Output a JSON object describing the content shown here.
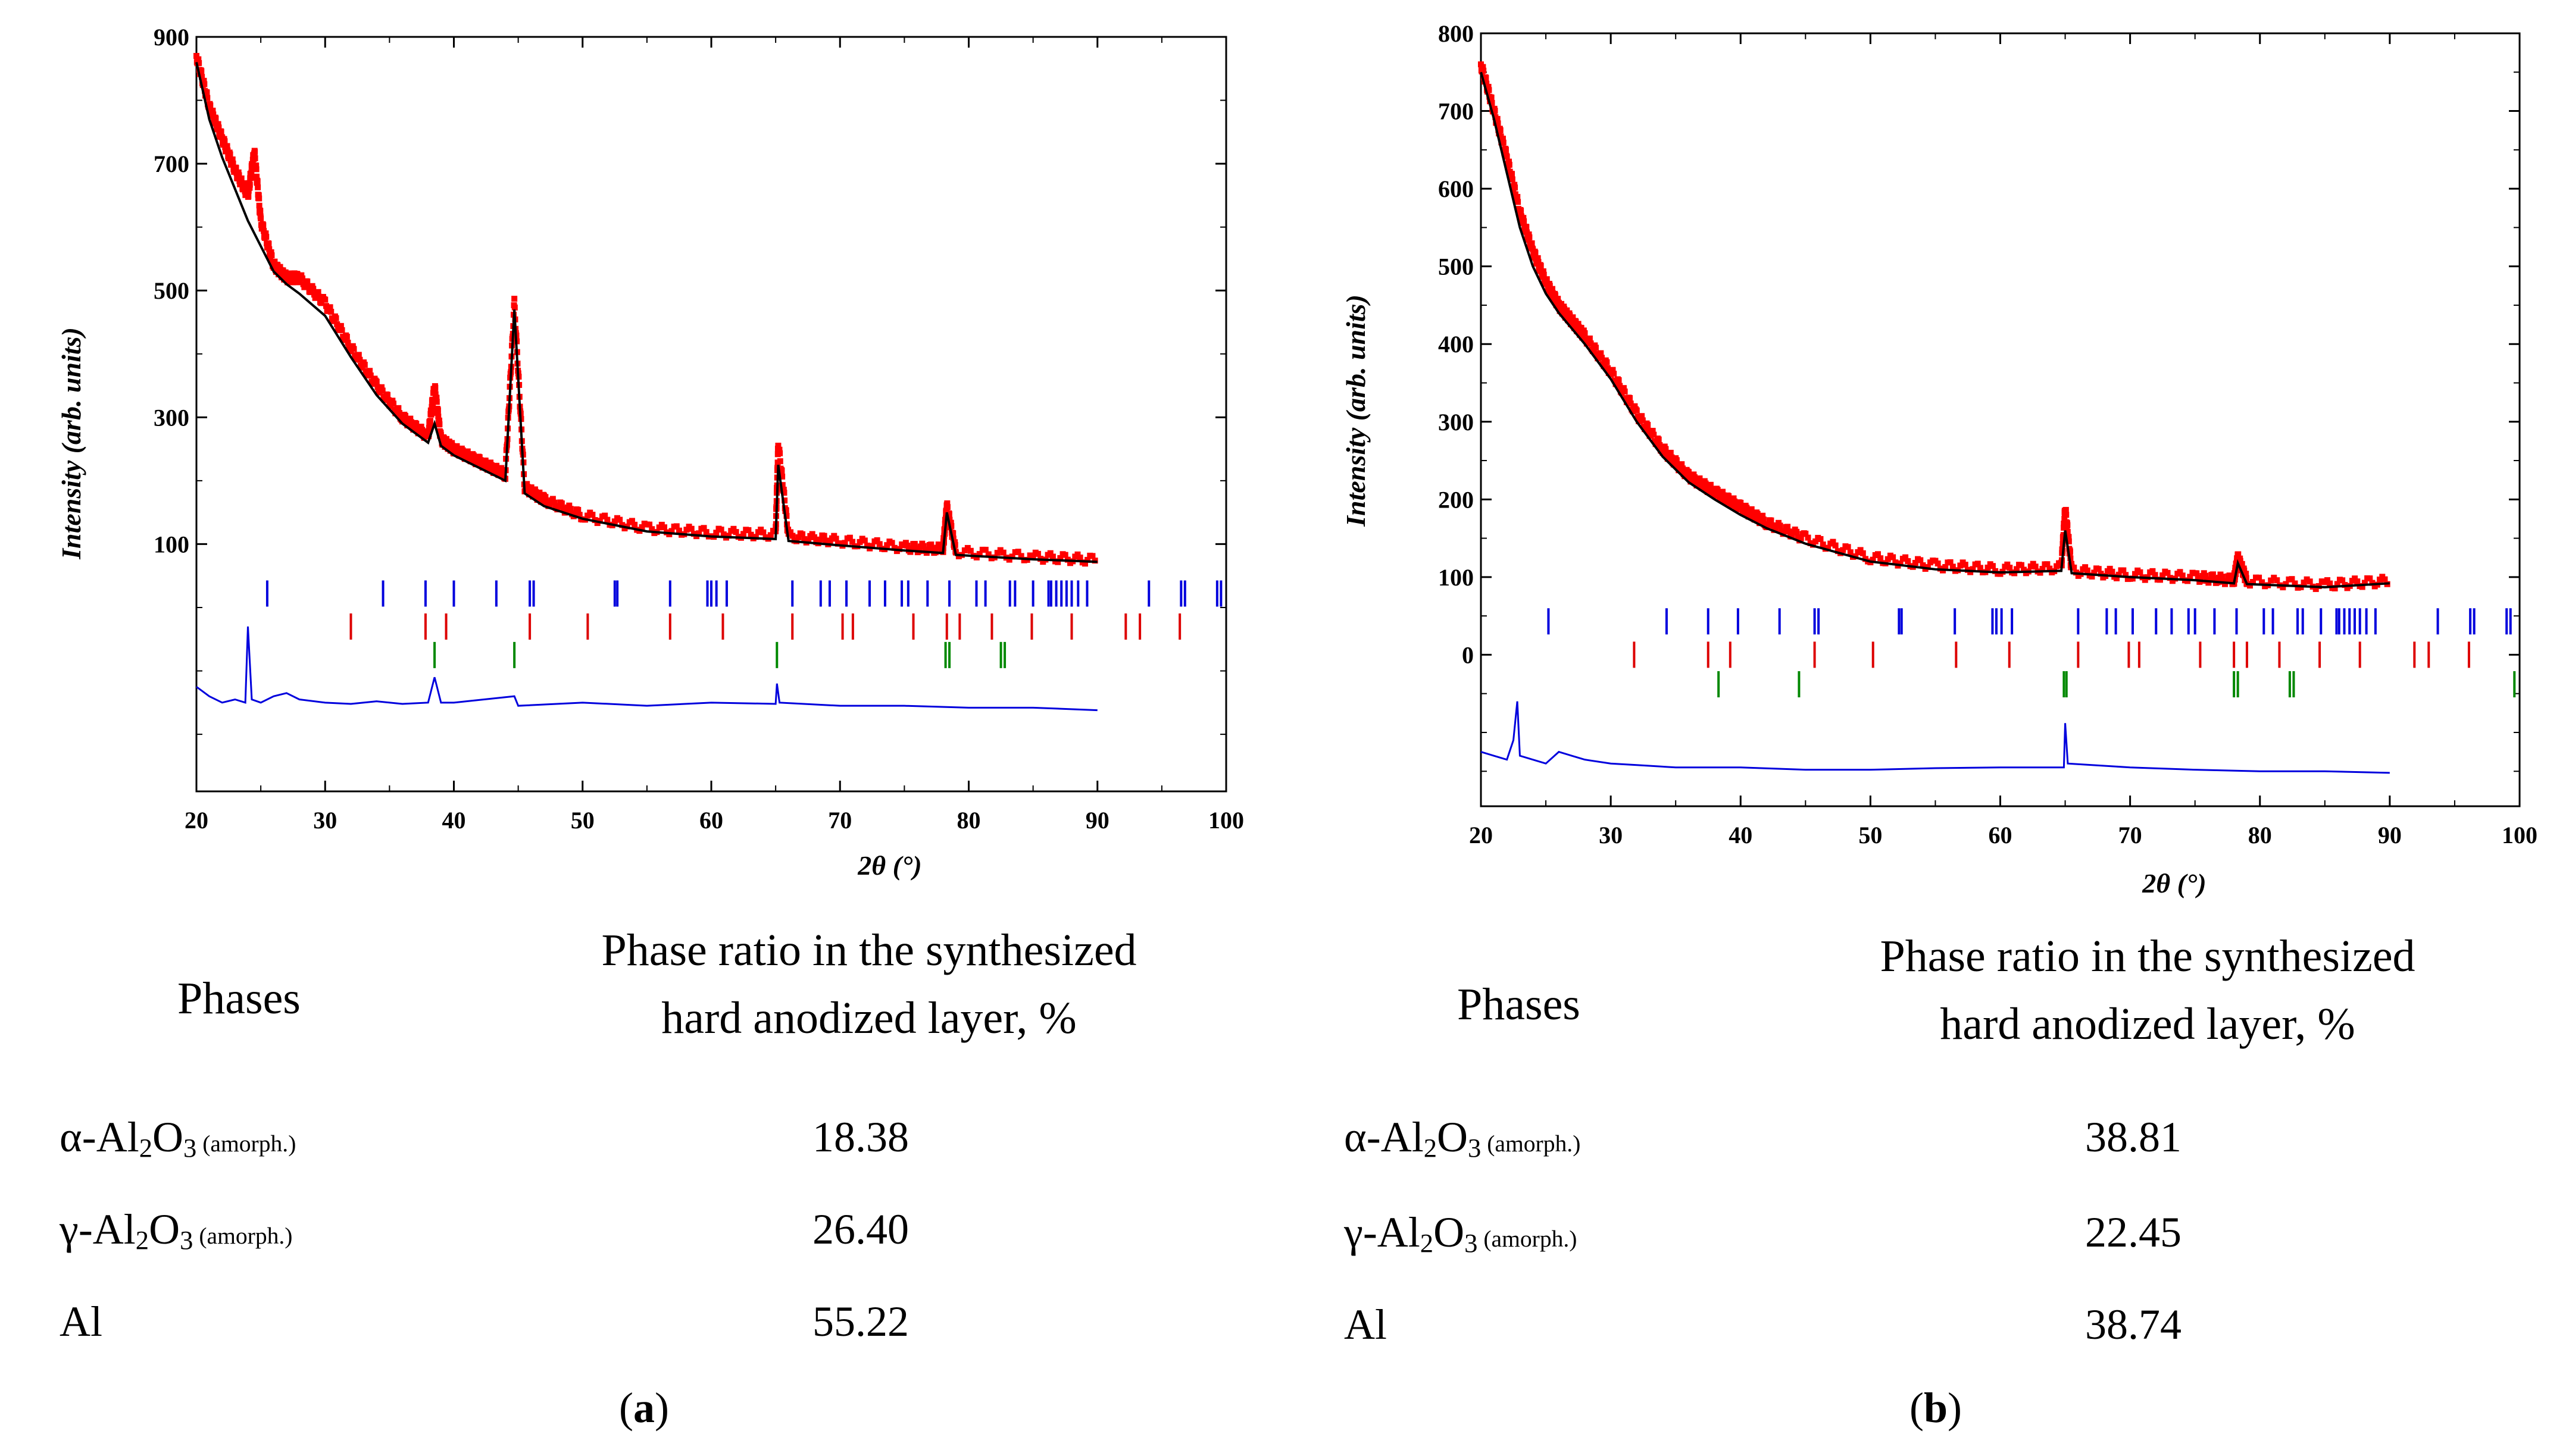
{
  "chart_data": [
    {
      "type": "line",
      "panel_label": "a",
      "xlabel": "2θ (°)",
      "ylabel": "Intensity (arb. units)",
      "xlim": [
        20,
        100
      ],
      "ylim": [
        -290,
        900
      ],
      "x_ticks": [
        20,
        30,
        40,
        50,
        60,
        70,
        80,
        90,
        100
      ],
      "y_ticks": [
        900,
        700,
        500,
        300,
        100
      ],
      "series": [
        {
          "name": "Observed",
          "color": "#ff0000",
          "style": "points",
          "x": [
            20,
            21,
            22,
            23,
            24,
            24.5,
            25,
            26,
            27,
            28,
            30,
            32,
            34,
            36,
            38,
            38.5,
            39,
            40,
            42,
            44,
            44.7,
            45.5,
            47,
            50,
            55,
            60,
            65,
            65.2,
            66,
            70,
            75,
            78,
            78.3,
            79,
            85,
            90
          ],
          "y": [
            870,
            790,
            740,
            690,
            650,
            720,
            610,
            540,
            520,
            520,
            480,
            410,
            350,
            300,
            270,
            350,
            265,
            250,
            230,
            210,
            480,
            190,
            170,
            145,
            125,
            118,
            115,
            260,
            112,
            105,
            95,
            92,
            160,
            88,
            80,
            75
          ]
        },
        {
          "name": "Calculated",
          "color": "#000000",
          "style": "line",
          "x": [
            20,
            21,
            22,
            23,
            24,
            25,
            26,
            27,
            28,
            30,
            32,
            34,
            36,
            38,
            38.5,
            39,
            40,
            42,
            44,
            44.7,
            45.5,
            47,
            50,
            55,
            60,
            65,
            65.2,
            66,
            70,
            75,
            78,
            78.3,
            79,
            85,
            90
          ],
          "y": [
            860,
            770,
            710,
            660,
            610,
            570,
            530,
            510,
            495,
            460,
            395,
            335,
            290,
            260,
            290,
            255,
            240,
            220,
            200,
            470,
            180,
            160,
            140,
            120,
            112,
            108,
            225,
            105,
            98,
            90,
            86,
            150,
            83,
            76,
            72
          ]
        },
        {
          "name": "Difference",
          "color": "#0000dd",
          "style": "line",
          "x": [
            20,
            21,
            22,
            23,
            23.8,
            24,
            24.3,
            25,
            26,
            27,
            28,
            30,
            32,
            34,
            36,
            38,
            38.5,
            39,
            40,
            44.7,
            45,
            50,
            55,
            60,
            65,
            65.1,
            65.3,
            70,
            75,
            80,
            85,
            90
          ],
          "y": [
            -125,
            -140,
            -150,
            -145,
            -150,
            -30,
            -145,
            -150,
            -140,
            -135,
            -145,
            -150,
            -152,
            -148,
            -152,
            -150,
            -110,
            -150,
            -150,
            -140,
            -155,
            -150,
            -155,
            -150,
            -152,
            -120,
            -150,
            -155,
            -155,
            -158,
            -158,
            -162
          ]
        }
      ],
      "bragg_rows": [
        {
          "name": "Phase 1",
          "color": "#0000dd",
          "y": 22,
          "positions": [
            25.5,
            34.5,
            37.8,
            40,
            43.3,
            45.9,
            46.2,
            52.5,
            52.7,
            56.8,
            59.7,
            60,
            60.4,
            61.2,
            66.3,
            68.5,
            69.2,
            70.5,
            72.3,
            73.5,
            74.8,
            75.3,
            76.8,
            78.5,
            80.6,
            81.3,
            83.2,
            83.6,
            85,
            86.2,
            86.4,
            86.8,
            87.2,
            87.6,
            88,
            88.5,
            89.2,
            94,
            96.5,
            96.8,
            99.3,
            99.6
          ]
        },
        {
          "name": "Phase 2",
          "color": "#dd0000",
          "y": -30,
          "positions": [
            32,
            37.8,
            39.4,
            45.9,
            50.4,
            56.8,
            60.9,
            66.3,
            70.2,
            71,
            75.7,
            78.3,
            79.3,
            81.8,
            84.9,
            88,
            92.2,
            93.3,
            96.4
          ]
        },
        {
          "name": "Phase 3",
          "color": "#008800",
          "y": -75,
          "positions": [
            38.5,
            44.7,
            65.1,
            78.2,
            78.5,
            82.5,
            82.8
          ]
        }
      ],
      "table": {
        "col_phases": "Phases",
        "col_ratio_line1": "Phase ratio in the synthesized",
        "col_ratio_line2": "hard anodized layer, %",
        "rows": [
          {
            "prefix": "α-Al",
            "sub1": "2",
            "mid": "O",
            "sub2": "3",
            "note": " (amorph.)",
            "value": "18.38"
          },
          {
            "prefix": "γ-Al",
            "sub1": "2",
            "mid": "O",
            "sub2": "3",
            "note": " (amorph.)",
            "value": "26.40"
          },
          {
            "prefix": "Al",
            "sub1": "",
            "mid": "",
            "sub2": "",
            "note": "",
            "value": "55.22"
          }
        ]
      }
    },
    {
      "type": "line",
      "panel_label": "b",
      "xlabel": "2θ (°)",
      "ylabel": "Intensity (arb. units)",
      "xlim": [
        20,
        100
      ],
      "ylim": [
        -195,
        800
      ],
      "x_ticks": [
        20,
        30,
        40,
        50,
        60,
        70,
        80,
        90,
        100
      ],
      "y_ticks": [
        800,
        700,
        600,
        500,
        400,
        300,
        200,
        100,
        0
      ],
      "series": [
        {
          "name": "Observed",
          "color": "#ff0000",
          "style": "points",
          "x": [
            20,
            21,
            22,
            23,
            24,
            25,
            26,
            27,
            28,
            30,
            32,
            34,
            36,
            38,
            40,
            42,
            45,
            50,
            55,
            60,
            64.7,
            65,
            65.5,
            70,
            75,
            78,
            78.3,
            79,
            85,
            90
          ],
          "y": [
            760,
            700,
            640,
            570,
            520,
            480,
            450,
            430,
            410,
            365,
            310,
            265,
            230,
            210,
            190,
            170,
            150,
            125,
            115,
            110,
            112,
            190,
            108,
            103,
            100,
            96,
            125,
            95,
            90,
            95
          ]
        },
        {
          "name": "Calculated",
          "color": "#000000",
          "style": "line",
          "x": [
            20,
            21,
            22,
            23,
            24,
            25,
            26,
            27,
            28,
            30,
            32,
            34,
            36,
            38,
            40,
            42,
            45,
            50,
            55,
            60,
            64.7,
            65,
            65.5,
            70,
            75,
            78,
            78.3,
            79,
            85,
            90
          ],
          "y": [
            750,
            690,
            620,
            550,
            500,
            465,
            440,
            420,
            400,
            355,
            300,
            255,
            222,
            200,
            180,
            163,
            143,
            120,
            110,
            106,
            108,
            160,
            105,
            100,
            96,
            92,
            118,
            91,
            87,
            92
          ]
        },
        {
          "name": "Difference",
          "color": "#0000dd",
          "style": "line",
          "x": [
            20,
            21,
            22,
            22.5,
            22.8,
            23,
            24,
            25,
            26,
            27,
            28,
            30,
            32,
            35,
            40,
            45,
            50,
            55,
            60,
            64.9,
            65,
            65.2,
            70,
            75,
            80,
            85,
            90
          ],
          "y": [
            -125,
            -130,
            -135,
            -110,
            -60,
            -130,
            -135,
            -140,
            -125,
            -130,
            -135,
            -140,
            -142,
            -145,
            -145,
            -148,
            -148,
            -146,
            -145,
            -145,
            -88,
            -140,
            -145,
            -148,
            -150,
            -150,
            -152
          ]
        }
      ],
      "bragg_rows": [
        {
          "name": "Phase 1",
          "color": "#0000dd",
          "y": 43,
          "positions": [
            25.2,
            34.3,
            37.5,
            39.8,
            43,
            45.7,
            46,
            52.2,
            52.4,
            56.5,
            59.4,
            59.7,
            60.1,
            60.9,
            66,
            68.2,
            68.9,
            70.2,
            72,
            73.2,
            74.5,
            75,
            76.5,
            78.2,
            80.3,
            81,
            82.9,
            83.3,
            84.7,
            85.9,
            86.1,
            86.5,
            86.9,
            87.3,
            87.7,
            88.2,
            88.9,
            93.7,
            96.2,
            96.5,
            99,
            99.3
          ]
        },
        {
          "name": "Phase 2",
          "color": "#dd0000",
          "y": 0,
          "positions": [
            31.8,
            37.5,
            39.2,
            45.7,
            50.2,
            56.6,
            60.7,
            66,
            69.9,
            70.7,
            75.4,
            78,
            79,
            81.5,
            84.6,
            87.7,
            91.9,
            93,
            96.1
          ]
        },
        {
          "name": "Phase 3",
          "color": "#008800",
          "y": -38,
          "positions": [
            38.3,
            44.5,
            64.9,
            65.1,
            78,
            78.3,
            82.3,
            82.6,
            99.6
          ]
        }
      ],
      "table": {
        "col_phases": "Phases",
        "col_ratio_line1": "Phase ratio in the synthesized",
        "col_ratio_line2": "hard anodized layer, %",
        "rows": [
          {
            "prefix": "α-Al",
            "sub1": "2",
            "mid": "O",
            "sub2": "3",
            "note": " (amorph.)",
            "value": "38.81"
          },
          {
            "prefix": "γ-Al",
            "sub1": "2",
            "mid": "O",
            "sub2": "3",
            "note": " (amorph.)",
            "value": "22.45"
          },
          {
            "prefix": "Al",
            "sub1": "",
            "mid": "",
            "sub2": "",
            "note": "",
            "value": "38.74"
          }
        ]
      }
    }
  ]
}
